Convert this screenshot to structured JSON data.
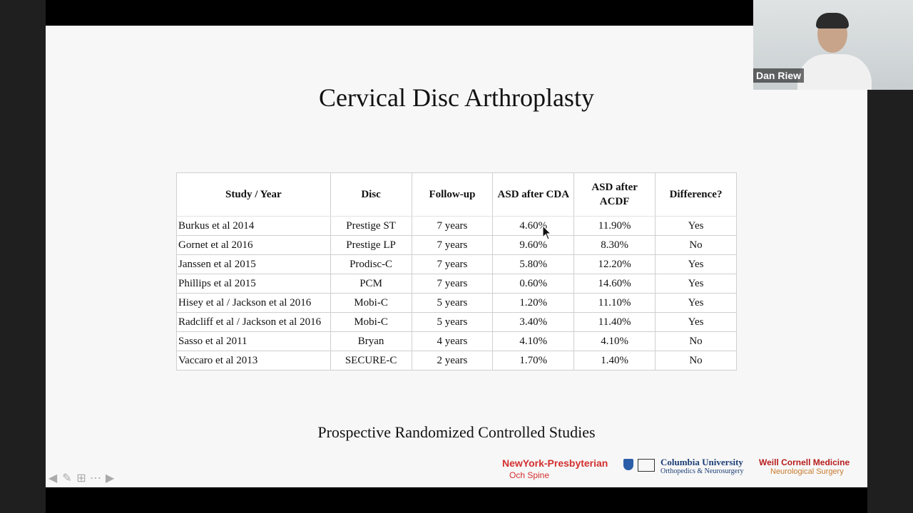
{
  "slide": {
    "title": "Cervical Disc Arthroplasty",
    "subtitle": "Prospective Randomized Controlled Studies",
    "table": {
      "headers": [
        "Study / Year",
        "Disc",
        "Follow-up",
        "ASD after CDA",
        "ASD after ACDF",
        "Difference?"
      ],
      "rows": [
        [
          "Burkus et al 2014",
          "Prestige ST",
          "7 years",
          "4.60%",
          "11.90%",
          "Yes"
        ],
        [
          "Gornet et al 2016",
          "Prestige LP",
          "7 years",
          "9.60%",
          "8.30%",
          "No"
        ],
        [
          "Janssen et al 2015",
          "Prodisc-C",
          "7 years",
          "5.80%",
          "12.20%",
          "Yes"
        ],
        [
          "Phillips et al 2015",
          "PCM",
          "7 years",
          "0.60%",
          "14.60%",
          "Yes"
        ],
        [
          "Hisey et al / Jackson et al 2016",
          "Mobi-C",
          "5 years",
          "1.20%",
          "11.10%",
          "Yes"
        ],
        [
          "Radcliff et al / Jackson et al 2016",
          "Mobi-C",
          "5 years",
          "3.40%",
          "11.40%",
          "Yes"
        ],
        [
          "Sasso et al 2011",
          "Bryan",
          "4 years",
          "4.10%",
          "4.10%",
          "No"
        ],
        [
          "Vaccaro et al 2013",
          "SECURE-C",
          "2 years",
          "1.70%",
          "1.40%",
          "No"
        ]
      ]
    },
    "logos": {
      "nyp_main": "NewYork-Presbyterian",
      "nyp_sub": "Och Spine",
      "columbia_main": "Columbia University",
      "columbia_sub": "Orthopedics & Neurosurgery",
      "weill_main": "Weill Cornell Medicine",
      "weill_sub": "Neurological Surgery"
    }
  },
  "video": {
    "participant_name": "Dan Riew"
  }
}
